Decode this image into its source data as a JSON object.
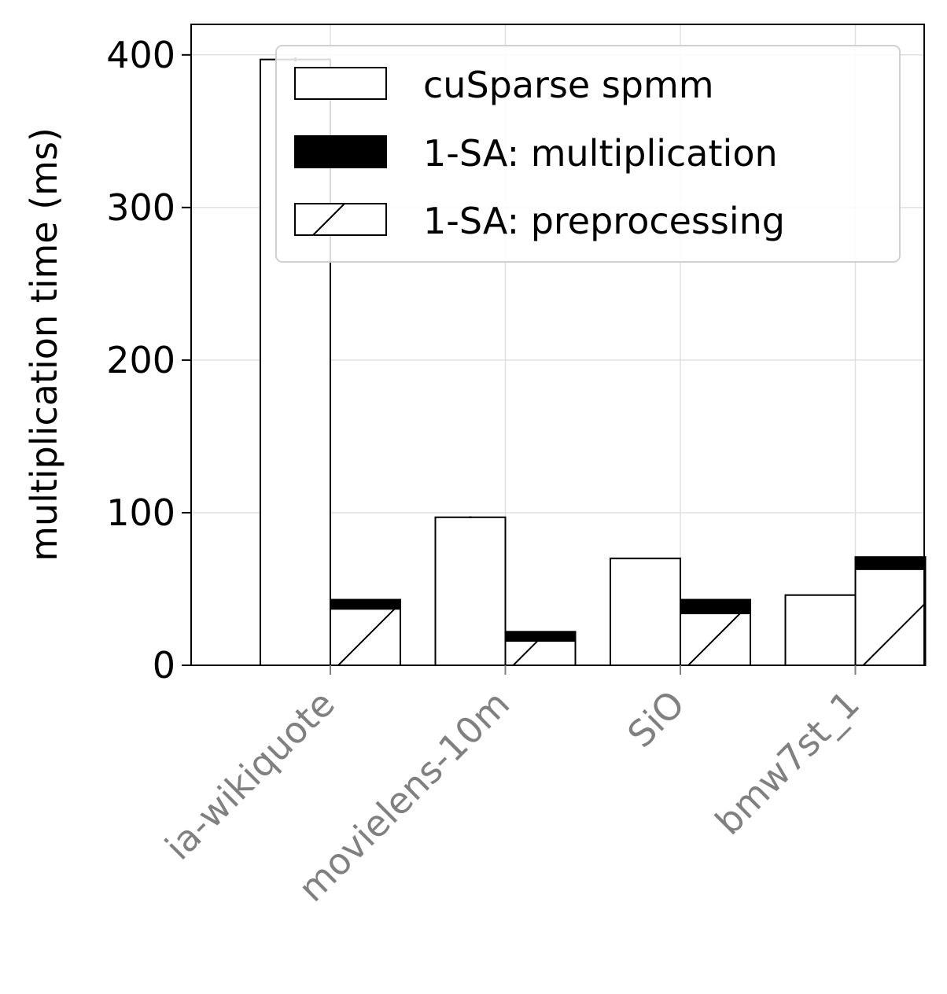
{
  "chart_data": {
    "type": "bar",
    "stacked_second_bar": true,
    "categories": [
      "ia-wikiquote",
      "movielens-10m",
      "SiO",
      "bmw7st_1"
    ],
    "series": [
      {
        "name": "cuSparse spmm",
        "values": [
          397,
          97,
          70,
          46
        ],
        "errors": [
          1.2,
          0.6,
          0.3,
          0.3
        ],
        "fill": "#ffffff",
        "pattern": "none"
      },
      {
        "name": "1-SA: multiplication",
        "values": [
          6,
          6,
          9,
          8
        ],
        "fill": "#000000",
        "pattern": "solid"
      },
      {
        "name": "1-SA: preprocessing",
        "values": [
          37,
          16,
          34,
          63
        ],
        "fill": "#ffffff",
        "pattern": "hatch"
      }
    ],
    "title": "",
    "xlabel": "",
    "ylabel": "multiplication time (ms)",
    "ylim": [
      0,
      420
    ],
    "yticks": [
      "0",
      "100",
      "200",
      "300",
      "400"
    ],
    "grid": true,
    "legend_position": "top-right",
    "colors": {
      "edge": "#000000",
      "grid": "#e0e0e0",
      "category_label": "#808080"
    }
  }
}
